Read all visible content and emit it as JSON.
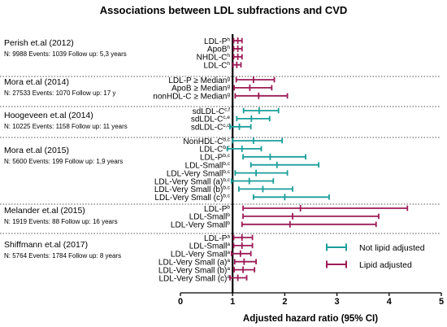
{
  "chart_data": {
    "type": "forest",
    "title": "Associations between LDL subfractions and CVD",
    "xlabel": "Adjusted hazard ratio (95% CI)",
    "xlim": [
      0,
      5
    ],
    "xticks": [
      0,
      1,
      2,
      3,
      4,
      5
    ],
    "reference_line": 1,
    "colors": {
      "not_lipid_adjusted": "#1a9e9a",
      "lipid_adjusted": "#9c1b57"
    },
    "legend": [
      {
        "key": "not_lipid_adjusted",
        "label": "Not lipid adjusted"
      },
      {
        "key": "lipid_adjusted",
        "label": "Lipid adjusted"
      }
    ],
    "studies": [
      {
        "name": "Perish et.al (2012)",
        "info": "N: 9988 Events: 1039 Follow up: 5,3 years",
        "rows": [
          {
            "label": "LDL-P",
            "sup": "h",
            "adj": "lipid_adjusted",
            "est": 1.1,
            "lo": 1.02,
            "hi": 1.18
          },
          {
            "label": "ApoB",
            "sup": "h",
            "adj": "lipid_adjusted",
            "est": 1.1,
            "lo": 1.02,
            "hi": 1.18
          },
          {
            "label": "NHDL-C",
            "sup": "h",
            "adj": "lipid_adjusted",
            "est": 1.1,
            "lo": 1.02,
            "hi": 1.18
          },
          {
            "label": "LDL-C",
            "sup": "h",
            "adj": "lipid_adjusted",
            "est": 1.08,
            "lo": 1.01,
            "hi": 1.16
          }
        ]
      },
      {
        "name": "Mora et.al (2014)",
        "info": "N: 27533 Events: 1070 Follow up: 17 y",
        "rows": [
          {
            "label": "LDL-P ≥ Median",
            "sup": "g",
            "adj": "lipid_adjusted",
            "est": 1.4,
            "lo": 1.07,
            "hi": 1.8
          },
          {
            "label": "ApoB ≥ Median",
            "sup": "g",
            "adj": "lipid_adjusted",
            "est": 1.33,
            "lo": 1.03,
            "hi": 1.75
          },
          {
            "label": "nonHDL-C ≥ Median",
            "sup": "g",
            "adj": "lipid_adjusted",
            "est": 1.5,
            "lo": 1.05,
            "hi": 2.05
          }
        ]
      },
      {
        "name": "Hoogeveen et.al (2014)",
        "info": "N: 10225 Events: 1158 Follow up: 11 years",
        "rows": [
          {
            "label": "sdLDL-C",
            "sup": "c,f",
            "adj": "not_lipid_adjusted",
            "est": 1.51,
            "lo": 1.21,
            "hi": 1.88
          },
          {
            "label": "sdLDL-C",
            "sup": "c,e",
            "adj": "not_lipid_adjusted",
            "est": 1.36,
            "lo": 1.08,
            "hi": 1.71
          },
          {
            "label": "sdLDL-C",
            "sup": "c,d",
            "adj": "not_lipid_adjusted",
            "est": 1.13,
            "lo": 0.95,
            "hi": 1.35
          }
        ]
      },
      {
        "name": "Mora et.al (2015)",
        "info": "N: 5600 Events: 199 Follow up: 1,9 years",
        "rows": [
          {
            "label": "NonHDL-C",
            "sup": "b,c",
            "adj": "not_lipid_adjusted",
            "est": 1.4,
            "lo": 1.0,
            "hi": 1.95
          },
          {
            "label": "LDL-C",
            "sup": "b,c",
            "adj": "not_lipid_adjusted",
            "est": 1.18,
            "lo": 0.9,
            "hi": 1.55
          },
          {
            "label": "LDL-P",
            "sup": "b,c",
            "adj": "not_lipid_adjusted",
            "est": 1.72,
            "lo": 1.2,
            "hi": 2.4
          },
          {
            "label": "LDL-Small",
            "sup": "b,c",
            "adj": "not_lipid_adjusted",
            "est": 1.85,
            "lo": 1.35,
            "hi": 2.65
          },
          {
            "label": "LDL-Very Small",
            "sup": "b,c",
            "adj": "not_lipid_adjusted",
            "est": 1.45,
            "lo": 1.05,
            "hi": 2.05
          },
          {
            "label": "LDL-Very Small (a)",
            "sup": "b,c",
            "adj": "not_lipid_adjusted",
            "est": 1.32,
            "lo": 0.98,
            "hi": 1.78
          },
          {
            "label": "LDL-Very Small (b)",
            "sup": "b,c",
            "adj": "not_lipid_adjusted",
            "est": 1.58,
            "lo": 1.12,
            "hi": 2.15
          },
          {
            "label": "LDL-Very Small (c)",
            "sup": "b,c",
            "adj": "not_lipid_adjusted",
            "est": 2.0,
            "lo": 1.4,
            "hi": 2.85
          }
        ]
      },
      {
        "name": "Melander et.al (2015)",
        "info": "N: 1919 Events: 88 Follow up: 16 years",
        "rows": [
          {
            "label": "LDL-P",
            "sup": "b",
            "adj": "lipid_adjusted",
            "est": 2.3,
            "lo": 1.2,
            "hi": 4.35
          },
          {
            "label": "LDL-Small",
            "sup": "b",
            "adj": "lipid_adjusted",
            "est": 2.15,
            "lo": 1.2,
            "hi": 3.8
          },
          {
            "label": "LDL-Very Small",
            "sup": "b",
            "adj": "lipid_adjusted",
            "est": 2.1,
            "lo": 1.18,
            "hi": 3.75
          }
        ]
      },
      {
        "name": "Shiffmann et.al (2017)",
        "info": "N: 5764 Events: 1784 Follow up: 8 years",
        "rows": [
          {
            "label": "LDL-P",
            "sup": "a",
            "adj": "lipid_adjusted",
            "est": 1.18,
            "lo": 1.02,
            "hi": 1.38
          },
          {
            "label": "LDL-Small",
            "sup": "a",
            "adj": "lipid_adjusted",
            "est": 1.18,
            "lo": 1.02,
            "hi": 1.38
          },
          {
            "label": "LDL-Very Small",
            "sup": "a",
            "adj": "lipid_adjusted",
            "est": 1.15,
            "lo": 0.98,
            "hi": 1.35
          },
          {
            "label": "LDL-Very Small (a)",
            "sup": "a",
            "adj": "lipid_adjusted",
            "est": 1.22,
            "lo": 1.04,
            "hi": 1.45
          },
          {
            "label": "LDL-Very Small (b)",
            "sup": "a",
            "adj": "lipid_adjusted",
            "est": 1.2,
            "lo": 1.03,
            "hi": 1.42
          },
          {
            "label": "LDL-Very Small (c)",
            "sup": "a",
            "adj": "lipid_adjusted",
            "est": 1.1,
            "lo": 0.95,
            "hi": 1.27
          }
        ]
      }
    ]
  }
}
